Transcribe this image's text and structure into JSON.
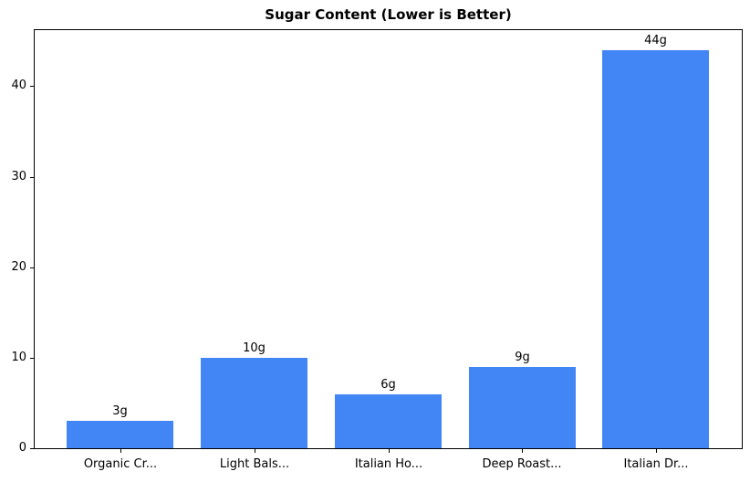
{
  "chart_data": {
    "type": "bar",
    "title": "Sugar Content (Lower is Better)",
    "categories": [
      "Organic Cr...",
      "Light Bals...",
      "Italian Ho...",
      "Deep Roast...",
      "Italian Dr..."
    ],
    "values": [
      3,
      10,
      6,
      9,
      44
    ],
    "bar_labels": [
      "3g",
      "10g",
      "6g",
      "9g",
      "44g"
    ],
    "xlabel": "",
    "ylabel": "",
    "ylim": [
      0,
      46.2
    ],
    "yticks": [
      0,
      10,
      20,
      30,
      40
    ],
    "bar_color": "#4285f4",
    "text_color": "#000000",
    "background_color": "#ffffff",
    "grid": false,
    "legend": "none",
    "bar_width_fraction": 0.8
  }
}
